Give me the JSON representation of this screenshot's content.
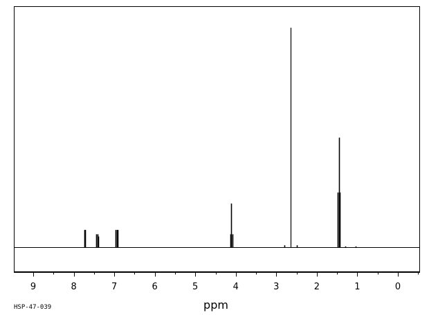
{
  "chart_data": {
    "type": "line",
    "xlabel": "ppm",
    "ylabel": "",
    "x_reversed": true,
    "xlim": [
      9.5,
      -0.5
    ],
    "ylim": [
      0,
      1.0
    ],
    "x_ticks": [
      9,
      8,
      7,
      6,
      5,
      4,
      3,
      2,
      1,
      0
    ],
    "grid": false,
    "sample_id": "HSP-47-039",
    "peaks": [
      {
        "ppm": 7.74,
        "intensity": 0.08
      },
      {
        "ppm": 7.72,
        "intensity": 0.08
      },
      {
        "ppm": 7.44,
        "intensity": 0.06
      },
      {
        "ppm": 7.42,
        "intensity": 0.06
      },
      {
        "ppm": 7.4,
        "intensity": 0.05
      },
      {
        "ppm": 6.96,
        "intensity": 0.08
      },
      {
        "ppm": 6.94,
        "intensity": 0.08
      },
      {
        "ppm": 6.92,
        "intensity": 0.08
      },
      {
        "ppm": 4.13,
        "intensity": 0.06
      },
      {
        "ppm": 4.11,
        "intensity": 0.2
      },
      {
        "ppm": 4.09,
        "intensity": 0.06
      },
      {
        "ppm": 2.8,
        "intensity": 0.01
      },
      {
        "ppm": 2.64,
        "intensity": 1.0
      },
      {
        "ppm": 2.5,
        "intensity": 0.01
      },
      {
        "ppm": 1.48,
        "intensity": 0.25
      },
      {
        "ppm": 1.46,
        "intensity": 0.5
      },
      {
        "ppm": 1.44,
        "intensity": 0.25
      },
      {
        "ppm": 1.3,
        "intensity": 0.005
      },
      {
        "ppm": 1.05,
        "intensity": 0.005
      }
    ]
  }
}
